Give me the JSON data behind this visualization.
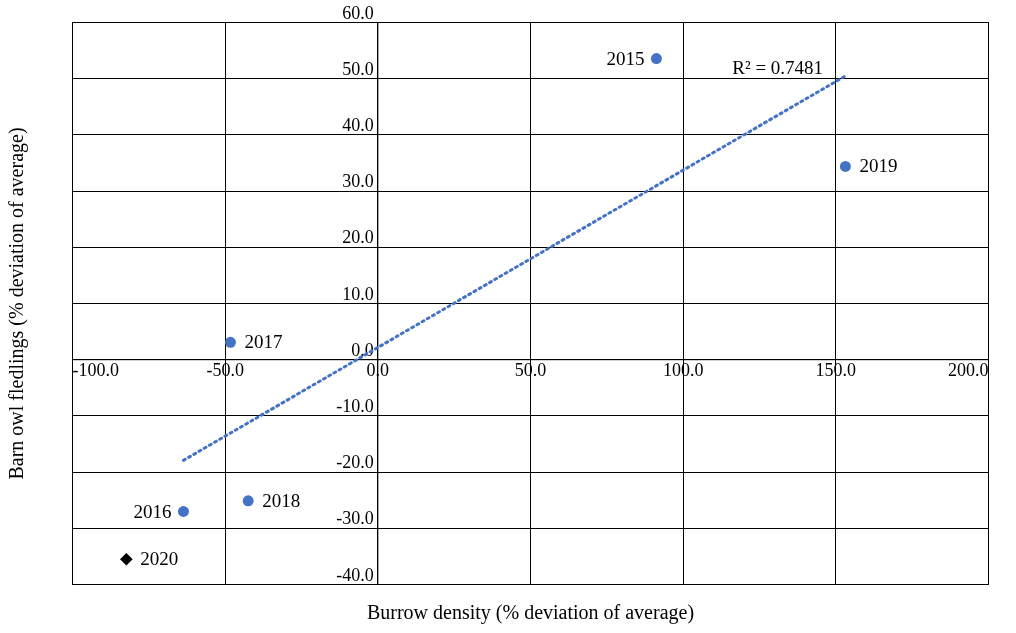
{
  "chart_data": {
    "type": "scatter",
    "xlabel": "Burrow density (% deviation of average)",
    "ylabel": "Barn owl fledlings (% deviation of average)",
    "xlim": [
      -100,
      200
    ],
    "ylim": [
      -40,
      60
    ],
    "xticks": [
      {
        "value": -100,
        "label": "-100.0"
      },
      {
        "value": -50,
        "label": "-50.0"
      },
      {
        "value": 0,
        "label": "0.0"
      },
      {
        "value": 50,
        "label": "50.0"
      },
      {
        "value": 100,
        "label": "100.0"
      },
      {
        "value": 150,
        "label": "150.0"
      },
      {
        "value": 200,
        "label": "200.0"
      }
    ],
    "yticks": [
      {
        "value": -40,
        "label": "-40.0"
      },
      {
        "value": -30,
        "label": "-30.0"
      },
      {
        "value": -20,
        "label": "-20.0"
      },
      {
        "value": -10,
        "label": "-10.0"
      },
      {
        "value": 0,
        "label": "0.0"
      },
      {
        "value": 10,
        "label": "10.0"
      },
      {
        "value": 20,
        "label": "20.0"
      },
      {
        "value": 30,
        "label": "30.0"
      },
      {
        "value": 40,
        "label": "40.0"
      },
      {
        "value": 50,
        "label": "50.0"
      },
      {
        "value": 60,
        "label": "60.0"
      }
    ],
    "grid": true,
    "series": [
      {
        "type": "scatter",
        "color": "#4472c4",
        "marker": "circle",
        "x": [
          91.4,
          -63.5,
          -48.1,
          -42.3,
          153.3
        ],
        "values": [
          53.5,
          -27.1,
          3.0,
          -25.2,
          34.3
        ]
      },
      {
        "type": "scatter",
        "color": "#000000",
        "marker": "diamond",
        "x": [
          -82.2
        ],
        "values": [
          -35.6
        ]
      },
      {
        "type": "line",
        "color": "#4472c4",
        "line_style": "dotted",
        "x": [
          -63.5,
          153.3
        ],
        "values": [
          -18.0,
          50.4
        ]
      }
    ],
    "annotations": [
      {
        "text": "2015",
        "x": 91.4,
        "y": 53.5
      },
      {
        "text": "2016",
        "x": -63.5,
        "y": -27.1
      },
      {
        "text": "2017",
        "x": -48.1,
        "y": 3.0
      },
      {
        "text": "2018",
        "x": -42.3,
        "y": -25.2
      },
      {
        "text": "2019",
        "x": 153.3,
        "y": 34.3
      },
      {
        "text": "2020",
        "x": -82.2,
        "y": -35.6
      },
      "R² = 0.7481"
    ]
  }
}
